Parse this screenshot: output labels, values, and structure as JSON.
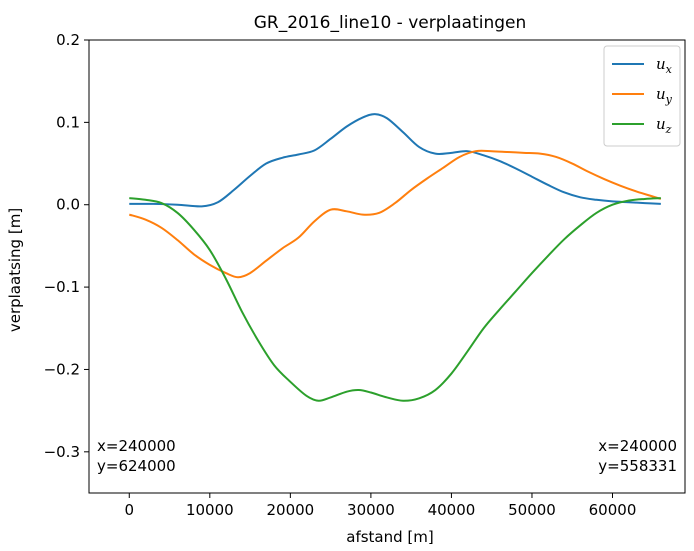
{
  "chart_data": {
    "type": "line",
    "title": "GR_2016_line10 - verplaatingen",
    "xlabel": "afstand [m]",
    "ylabel": "verplaatsing [m]",
    "xlim": [
      -5000,
      69000
    ],
    "ylim": [
      -0.35,
      0.2
    ],
    "xticks": [
      0,
      10000,
      20000,
      30000,
      40000,
      50000,
      60000
    ],
    "xtick_labels": [
      "0",
      "10000",
      "20000",
      "30000",
      "40000",
      "50000",
      "60000"
    ],
    "yticks": [
      0.2,
      0.1,
      0.0,
      -0.1,
      -0.2,
      -0.3
    ],
    "ytick_labels": [
      "0.2",
      "0.1",
      "0.0",
      "−0.1",
      "−0.2",
      "−0.3"
    ],
    "legend_position": "top-right",
    "grid": false,
    "series": [
      {
        "name_base": "u",
        "name_sub": "x",
        "color": "#1f77b4",
        "x": [
          0,
          3000,
          6000,
          9000,
          11000,
          13000,
          15000,
          17000,
          19000,
          21000,
          23000,
          25000,
          27000,
          29000,
          30500,
          32000,
          34000,
          36000,
          38000,
          40000,
          42000,
          44000,
          46000,
          48000,
          50000,
          52000,
          54000,
          56000,
          58000,
          60000,
          62000,
          64000,
          66000
        ],
        "y": [
          0.001,
          0.001,
          0.0,
          -0.002,
          0.003,
          0.018,
          0.035,
          0.05,
          0.057,
          0.061,
          0.066,
          0.08,
          0.095,
          0.106,
          0.11,
          0.105,
          0.088,
          0.07,
          0.062,
          0.063,
          0.065,
          0.06,
          0.053,
          0.044,
          0.034,
          0.024,
          0.015,
          0.009,
          0.006,
          0.004,
          0.003,
          0.002,
          0.001
        ]
      },
      {
        "name_base": "u",
        "name_sub": "y",
        "color": "#ff7f0e",
        "x": [
          0,
          2000,
          4000,
          6000,
          8000,
          10000,
          12000,
          13500,
          15000,
          17000,
          19000,
          21000,
          23000,
          25000,
          27000,
          29000,
          31000,
          33000,
          35000,
          37000,
          39000,
          41000,
          43000,
          45000,
          47000,
          49000,
          51000,
          53000,
          55000,
          57000,
          59000,
          61000,
          63000,
          65000,
          66000
        ],
        "y": [
          -0.012,
          -0.018,
          -0.028,
          -0.043,
          -0.06,
          -0.073,
          -0.083,
          -0.088,
          -0.083,
          -0.068,
          -0.053,
          -0.04,
          -0.02,
          -0.006,
          -0.008,
          -0.012,
          -0.01,
          0.002,
          0.018,
          0.032,
          0.045,
          0.058,
          0.065,
          0.065,
          0.064,
          0.063,
          0.062,
          0.058,
          0.05,
          0.04,
          0.031,
          0.023,
          0.016,
          0.01,
          0.007
        ]
      },
      {
        "name_base": "u",
        "name_sub": "z",
        "color": "#2ca02c",
        "x": [
          0,
          2000,
          4000,
          6000,
          8000,
          10000,
          12000,
          14000,
          16000,
          18000,
          20000,
          22000,
          23500,
          25000,
          27000,
          28500,
          30000,
          32000,
          34000,
          36000,
          38000,
          40000,
          42000,
          44000,
          46000,
          48000,
          50000,
          52000,
          54000,
          56000,
          58000,
          60000,
          62000,
          64000,
          66000
        ],
        "y": [
          0.008,
          0.006,
          0.002,
          -0.01,
          -0.03,
          -0.055,
          -0.09,
          -0.13,
          -0.165,
          -0.195,
          -0.215,
          -0.232,
          -0.238,
          -0.234,
          -0.227,
          -0.225,
          -0.228,
          -0.234,
          -0.238,
          -0.235,
          -0.225,
          -0.205,
          -0.178,
          -0.15,
          -0.127,
          -0.105,
          -0.083,
          -0.062,
          -0.042,
          -0.025,
          -0.01,
          0.0,
          0.005,
          0.007,
          0.008
        ]
      }
    ],
    "annotations": [
      {
        "lines": [
          "x=240000",
          "y=624000"
        ],
        "align": "left"
      },
      {
        "lines": [
          "x=240000",
          "y=558331"
        ],
        "align": "right"
      }
    ]
  }
}
